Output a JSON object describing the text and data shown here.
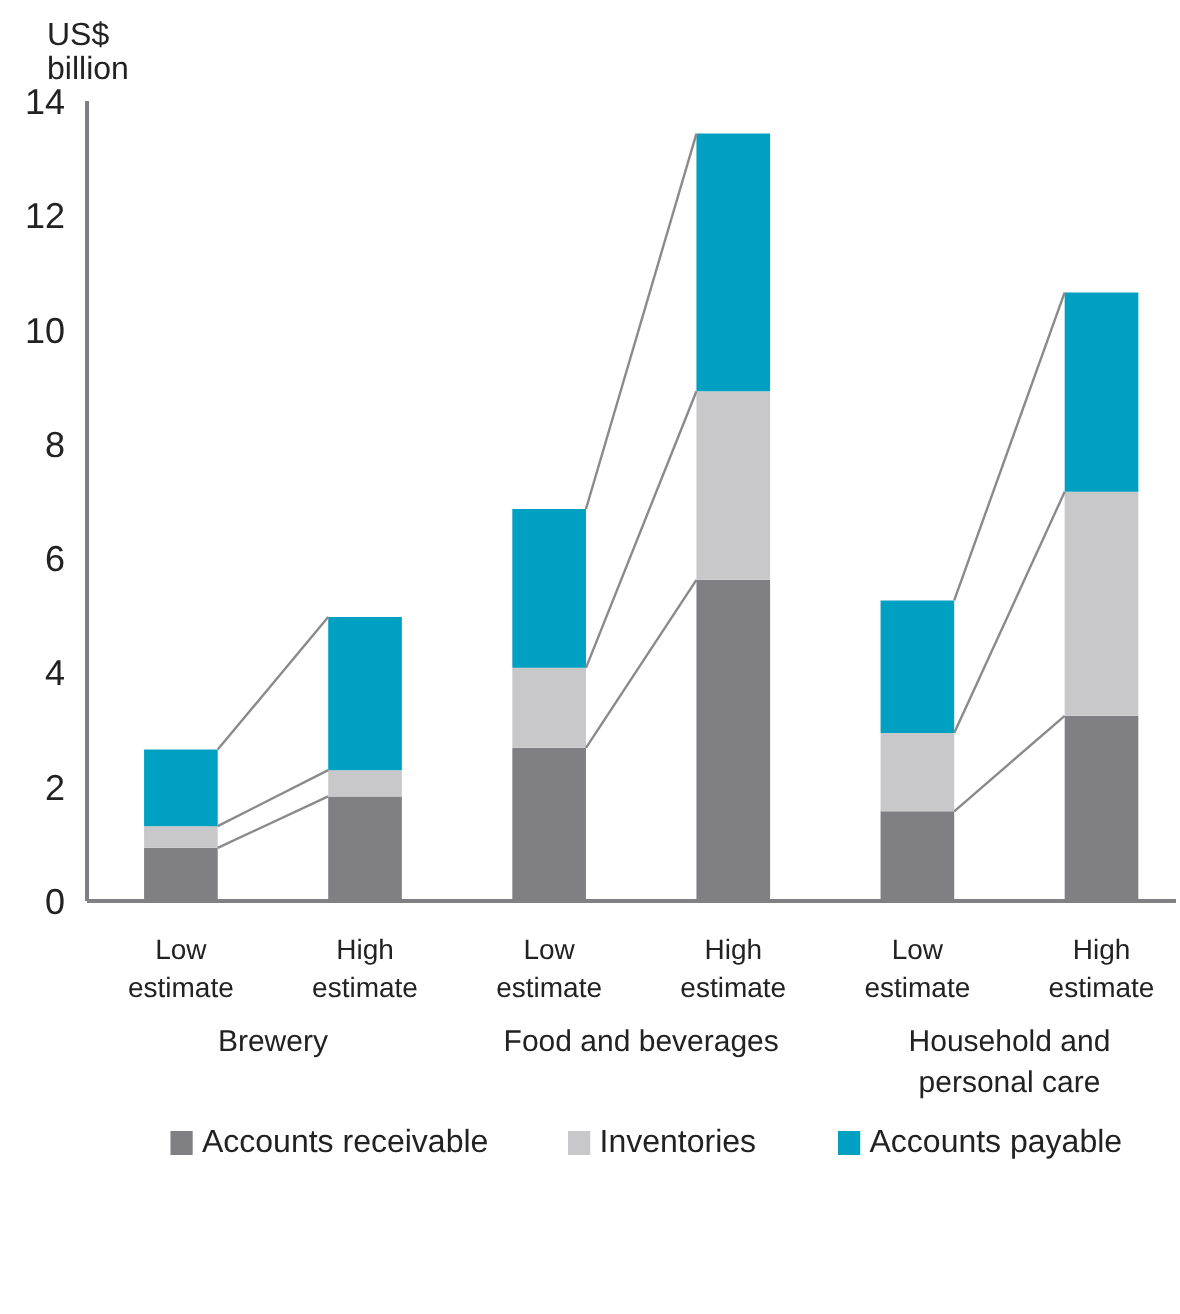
{
  "chart_data": {
    "type": "bar",
    "stacked": true,
    "ylabel": "US$ billion",
    "categories": [
      "Low estimate",
      "High estimate",
      "Low estimate",
      "High estimate",
      "Low estimate",
      "High estimate"
    ],
    "annotations": [
      "Brewery",
      "Food and beverages",
      "Household and personal care"
    ],
    "series": [
      {
        "name": "Accounts receivable",
        "color": "#808084",
        "values": [
          0.93,
          1.83,
          2.68,
          5.62,
          1.57,
          3.24
        ]
      },
      {
        "name": "Inventories",
        "color": "#c8c8ca",
        "values": [
          0.38,
          0.46,
          1.4,
          3.3,
          1.37,
          3.92
        ]
      },
      {
        "name": "Accounts payable",
        "color": "#00a0c2",
        "values": [
          1.34,
          2.68,
          2.78,
          4.51,
          2.32,
          3.49
        ]
      }
    ],
    "ylim": [
      0,
      14
    ],
    "yticks": [
      0,
      2,
      4,
      6,
      8,
      10,
      12,
      14
    ],
    "grid": false,
    "legend": "bottom"
  }
}
